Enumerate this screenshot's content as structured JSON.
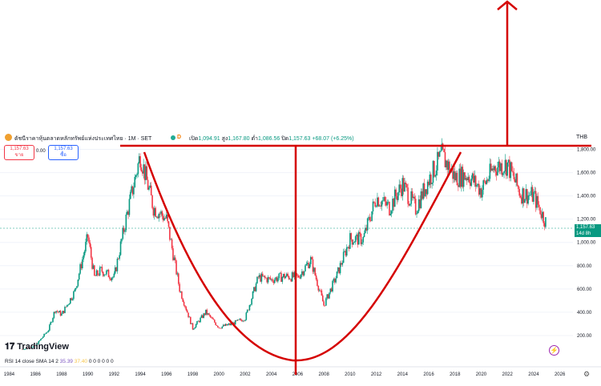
{
  "header": {
    "symbol_title": "ดัชนีราคาหุ้นตลาดหลักทรัพย์แห่งประเทศไทย · 1M · SET",
    "d_badge": "D",
    "ohlc_label_open": "เปิด",
    "open": "1,094.91",
    "ohlc_label_high": "สูง",
    "high": "1,167.80",
    "ohlc_label_low": "ต่ำ",
    "low": "1,086.56",
    "ohlc_label_close": "ปิด",
    "close": "1,157.63",
    "change": "+68.07 (+6.25%)",
    "currency": "THB"
  },
  "trade": {
    "sell_price": "1,157.63",
    "sell_label": "ขาย",
    "spread": "0.00",
    "buy_price": "1,157.63",
    "buy_label": "ซื้อ"
  },
  "price_label": {
    "value": "1,157.63",
    "countdown": "14d 8h"
  },
  "footer": {
    "logo": "TradingView",
    "rsi_label": "RSI 14 close SMA 14 2",
    "rsi_value1": "35.39",
    "rsi_value2": "37.40",
    "rsi_extra": "0 0 0 0 0 0"
  },
  "colors": {
    "up": "#089981",
    "down": "#f23645",
    "annotation": "#d50000"
  },
  "chart_data": {
    "type": "candlestick",
    "x_ticks": [
      "1984",
      "1986",
      "1988",
      "1990",
      "1992",
      "1994",
      "1996",
      "1998",
      "2000",
      "2002",
      "2004",
      "2006",
      "2008",
      "2010",
      "2012",
      "2014",
      "2016",
      "2018",
      "2020",
      "2022",
      "2024",
      "2026"
    ],
    "y_ticks": [
      "200.00",
      "400.00",
      "600.00",
      "800.00",
      "1,000.00",
      "1,200.00",
      "1,400.00",
      "1,600.00",
      "1,800.00"
    ],
    "ylim": [
      0,
      1900
    ],
    "xlim": [
      1983.3,
      2027
    ],
    "series": [
      {
        "values": [
          [
            1985,
            80
          ],
          [
            1986,
            110
          ],
          [
            1987,
            250
          ],
          [
            1987.5,
            420
          ],
          [
            1988,
            380
          ],
          [
            1989,
            580
          ],
          [
            1990,
            1050
          ],
          [
            1990.5,
            700
          ],
          [
            1991,
            760
          ],
          [
            1992,
            700
          ],
          [
            1993,
            1250
          ],
          [
            1994,
            1750
          ],
          [
            1995,
            1300
          ],
          [
            1996,
            1200
          ],
          [
            1997,
            600
          ],
          [
            1998,
            260
          ],
          [
            1999,
            400
          ],
          [
            2000,
            270
          ],
          [
            2001,
            300
          ],
          [
            2002,
            350
          ],
          [
            2003,
            700
          ],
          [
            2004,
            680
          ],
          [
            2005,
            710
          ],
          [
            2006,
            700
          ],
          [
            2007,
            850
          ],
          [
            2008,
            460
          ],
          [
            2009,
            720
          ],
          [
            2010,
            1030
          ],
          [
            2011,
            1030
          ],
          [
            2012,
            1390
          ],
          [
            2013,
            1300
          ],
          [
            2014,
            1500
          ],
          [
            2015,
            1290
          ],
          [
            2016,
            1540
          ],
          [
            2017,
            1750
          ],
          [
            2018,
            1560
          ],
          [
            2019,
            1580
          ],
          [
            2020,
            1450
          ],
          [
            2021,
            1650
          ],
          [
            2022,
            1670
          ],
          [
            2023,
            1420
          ],
          [
            2024,
            1400
          ],
          [
            2025,
            1157.63
          ]
        ]
      }
    ]
  }
}
